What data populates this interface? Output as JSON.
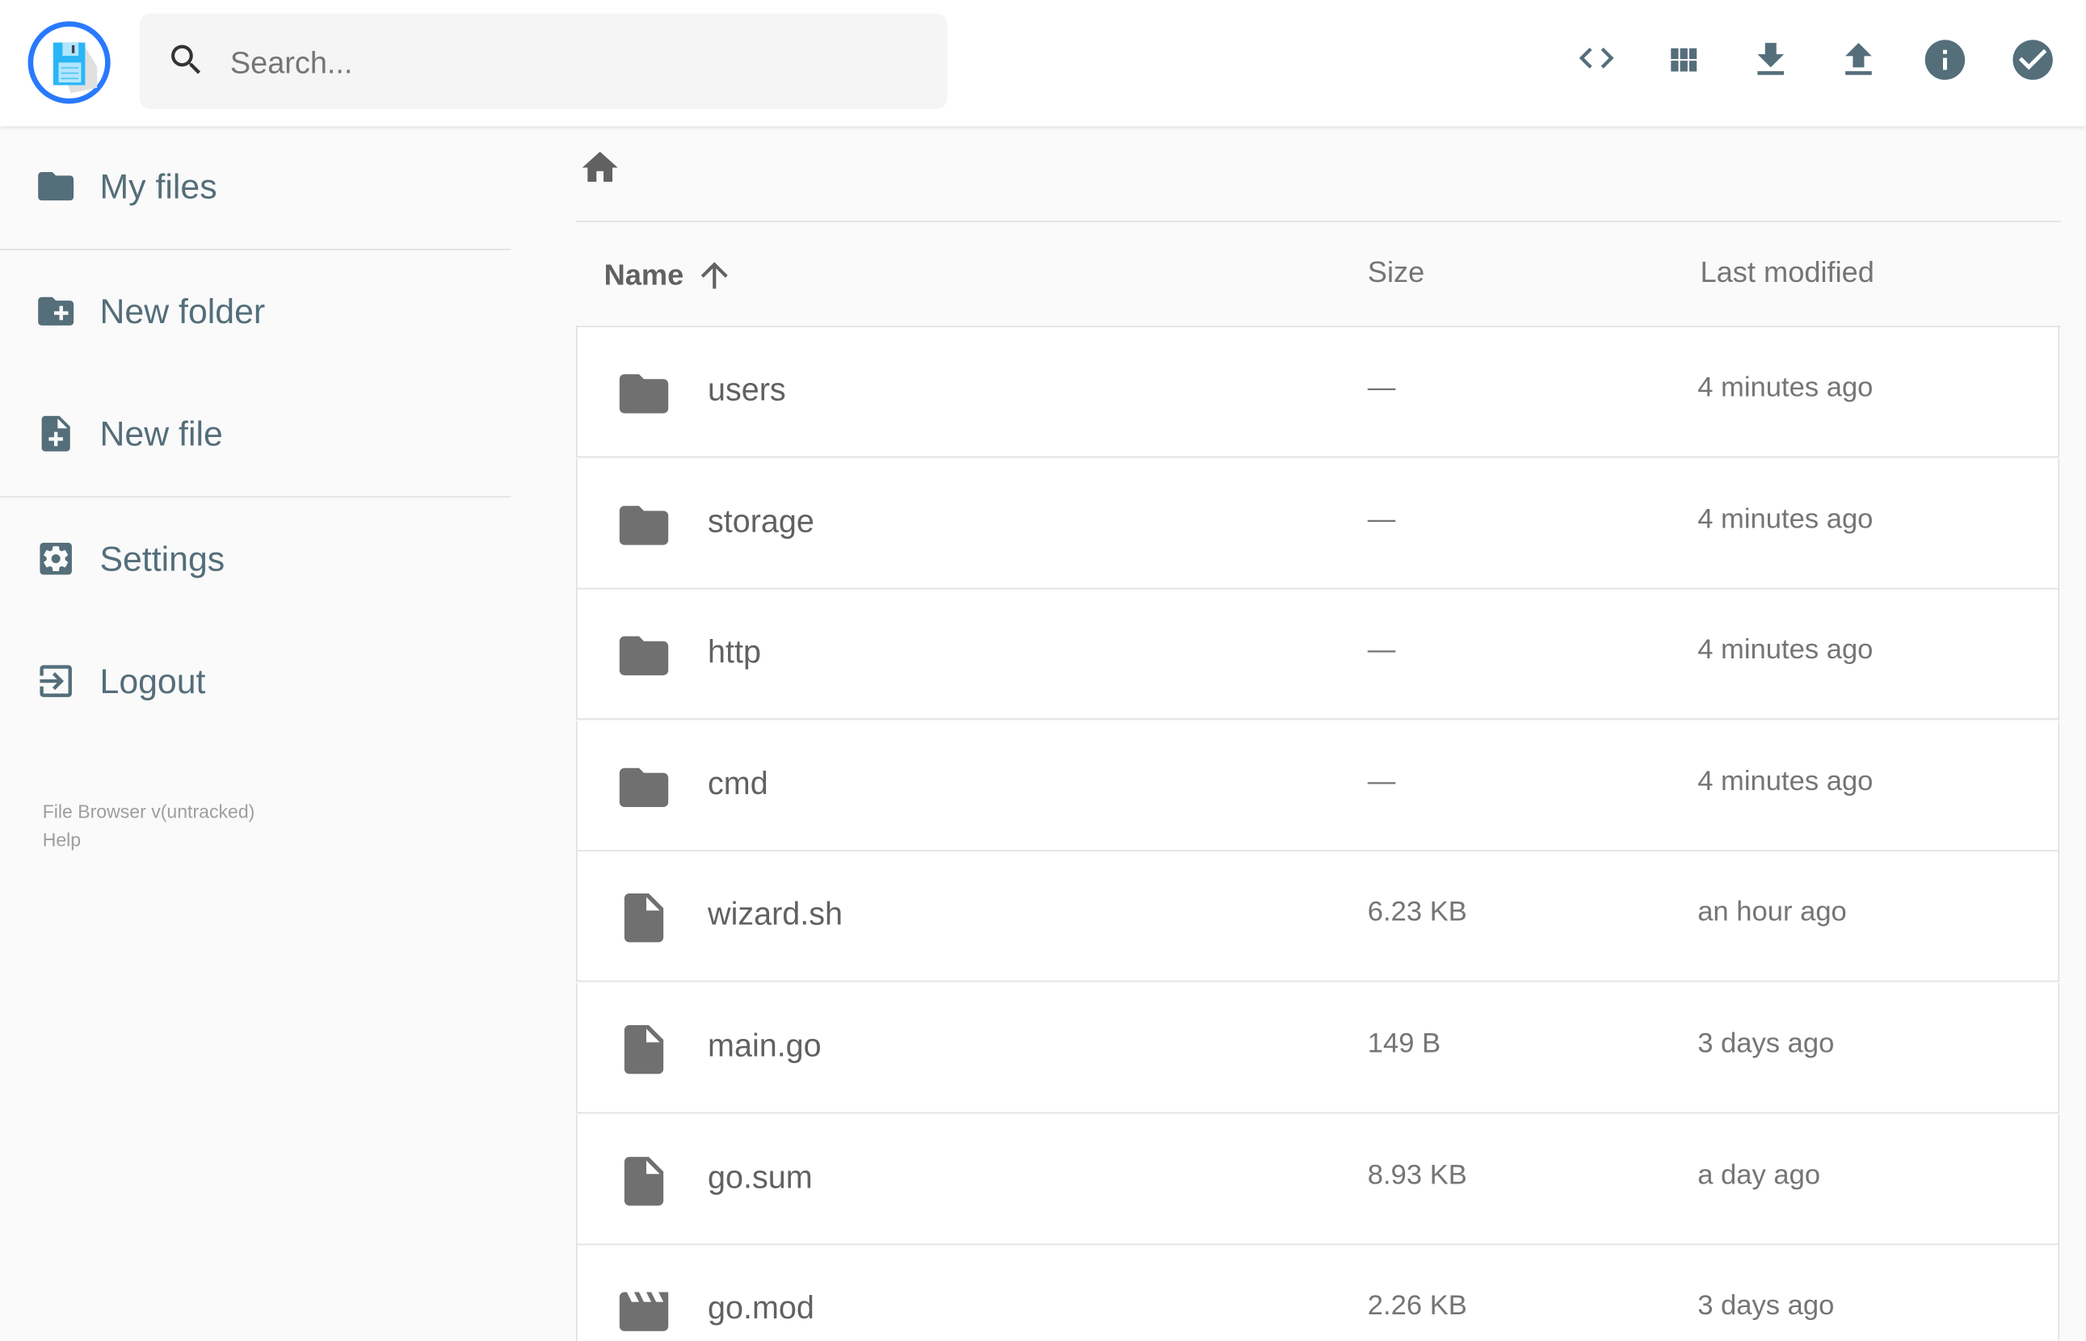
{
  "header": {
    "search_placeholder": "Search...",
    "actions": [
      {
        "name": "code-icon",
        "label": "Toggle code view"
      },
      {
        "name": "grid-view-icon",
        "label": "Switch view"
      },
      {
        "name": "download-icon",
        "label": "Download"
      },
      {
        "name": "upload-icon",
        "label": "Upload"
      },
      {
        "name": "info-icon",
        "label": "Info"
      },
      {
        "name": "check-circle-icon",
        "label": "Select multiple"
      }
    ]
  },
  "sidebar": {
    "items": [
      {
        "label": "My files",
        "icon": "folder-icon"
      },
      {
        "label": "New folder",
        "icon": "create-folder-icon"
      },
      {
        "label": "New file",
        "icon": "note-add-icon"
      },
      {
        "label": "Settings",
        "icon": "settings-icon"
      },
      {
        "label": "Logout",
        "icon": "exit-icon"
      }
    ],
    "footer": {
      "version": "File Browser v(untracked)",
      "help": "Help"
    }
  },
  "colors": {
    "accent": "#2979ff",
    "sidebar_text": "#546e7a",
    "file_icon": "#757575"
  },
  "listing": {
    "columns": {
      "name": "Name",
      "size": "Size",
      "modified": "Last modified"
    },
    "sort": "name-ascending",
    "rows": [
      {
        "name": "users",
        "type": "folder",
        "size": "—",
        "modified": "4 minutes ago"
      },
      {
        "name": "storage",
        "type": "folder",
        "size": "—",
        "modified": "4 minutes ago"
      },
      {
        "name": "http",
        "type": "folder",
        "size": "—",
        "modified": "4 minutes ago"
      },
      {
        "name": "cmd",
        "type": "folder",
        "size": "—",
        "modified": "4 minutes ago"
      },
      {
        "name": "wizard.sh",
        "type": "file",
        "size": "6.23 KB",
        "modified": "an hour ago"
      },
      {
        "name": "main.go",
        "type": "file",
        "size": "149 B",
        "modified": "3 days ago"
      },
      {
        "name": "go.sum",
        "type": "file",
        "size": "8.93 KB",
        "modified": "a day ago"
      },
      {
        "name": "go.mod",
        "type": "video",
        "size": "2.26 KB",
        "modified": "3 days ago"
      }
    ]
  }
}
